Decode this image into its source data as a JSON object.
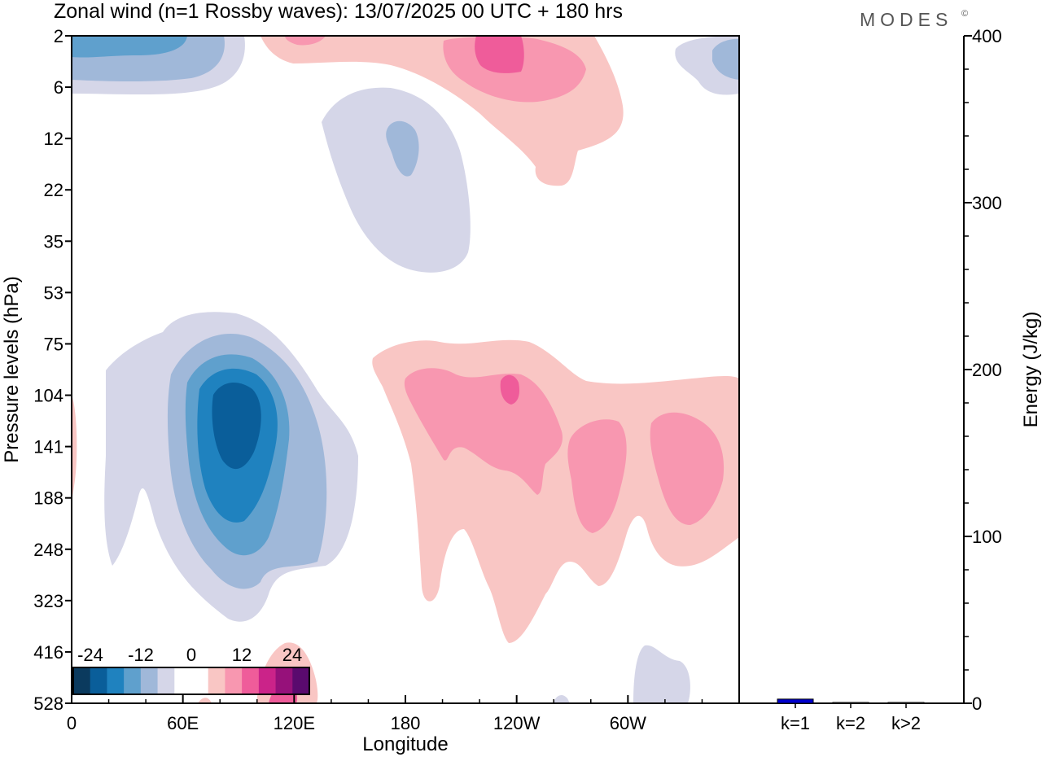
{
  "figure": {
    "title": "Zonal wind (n=1 Rossby waves):  13/07/2025  00 UTC  + 180 hrs",
    "brand": "MODES",
    "brand_mark": "©"
  },
  "chart_data": [
    {
      "type": "heatmap",
      "title": "Zonal wind (n=1 Rossby waves):  13/07/2025  00 UTC  + 180 hrs",
      "xlabel": "Longitude",
      "ylabel": "Pressure levels (hPa)",
      "x_ticks": [
        "0",
        "60E",
        "120E",
        "180",
        "120W",
        "60W"
      ],
      "y_ticks": [
        "2",
        "6",
        "12",
        "22",
        "35",
        "53",
        "75",
        "104",
        "141",
        "188",
        "248",
        "323",
        "416",
        "528"
      ],
      "y_scale": "log",
      "colorbar": {
        "tick_labels": [
          "-24",
          "-12",
          "0",
          "12",
          "24"
        ],
        "colors": [
          "#0b3a5e",
          "#0a5e9a",
          "#1f82bf",
          "#5fa0cd",
          "#a0b8d9",
          "#d5d6e8",
          "#ffffff",
          "#ffffff",
          "#f9c6c4",
          "#f897b0",
          "#ef5c9a",
          "#cb2389",
          "#96117a",
          "#5a0a6e"
        ],
        "placement": "bottom-left"
      },
      "features": [
        {
          "sign": "negative",
          "peak": "-24 to -21",
          "lon_range": [
            "25E",
            "150E"
          ],
          "p_range": [
            "53",
            "416"
          ],
          "core": "~85E, 104-188 hPa"
        },
        {
          "sign": "negative",
          "peak": "-9 to -6",
          "lon_range": [
            "140E",
            "150W"
          ],
          "p_range": [
            "6",
            "53"
          ]
        },
        {
          "sign": "negative",
          "peak": "-12 to -9",
          "lon_range": [
            "0",
            "60E"
          ],
          "p_range": [
            "2",
            "6"
          ]
        },
        {
          "sign": "positive",
          "peak": "9 to 12",
          "lon_range": [
            "120E",
            "140W"
          ],
          "p_range": [
            "2",
            "22"
          ]
        },
        {
          "sign": "positive",
          "peak": "9 to 12",
          "lon_range": [
            "170E",
            "0"
          ],
          "p_range": [
            "75",
            "416"
          ],
          "core": "~120W, 104-141 hPa"
        }
      ]
    },
    {
      "type": "bar",
      "ylabel": "Energy (J/kg)",
      "categories": [
        "k=1",
        "k=2",
        "k>2"
      ],
      "values": [
        2.5,
        0.5,
        0.5
      ],
      "ylim": [
        0,
        400
      ],
      "y_ticks": [
        "0",
        "100",
        "200",
        "300",
        "400"
      ],
      "colors": [
        "#0000cc",
        "#333333",
        "#333333"
      ]
    }
  ],
  "colors": {
    "neg3": "#0a5e9a",
    "neg2": "#1f82bf",
    "neg1": "#5fa0cd",
    "neg0b": "#a0b8d9",
    "neg0": "#d5d6e8",
    "pos0": "#f9c6c4",
    "pos1": "#f897b0",
    "pos2": "#ef5c9a",
    "bar_k1": "#0000cc"
  }
}
